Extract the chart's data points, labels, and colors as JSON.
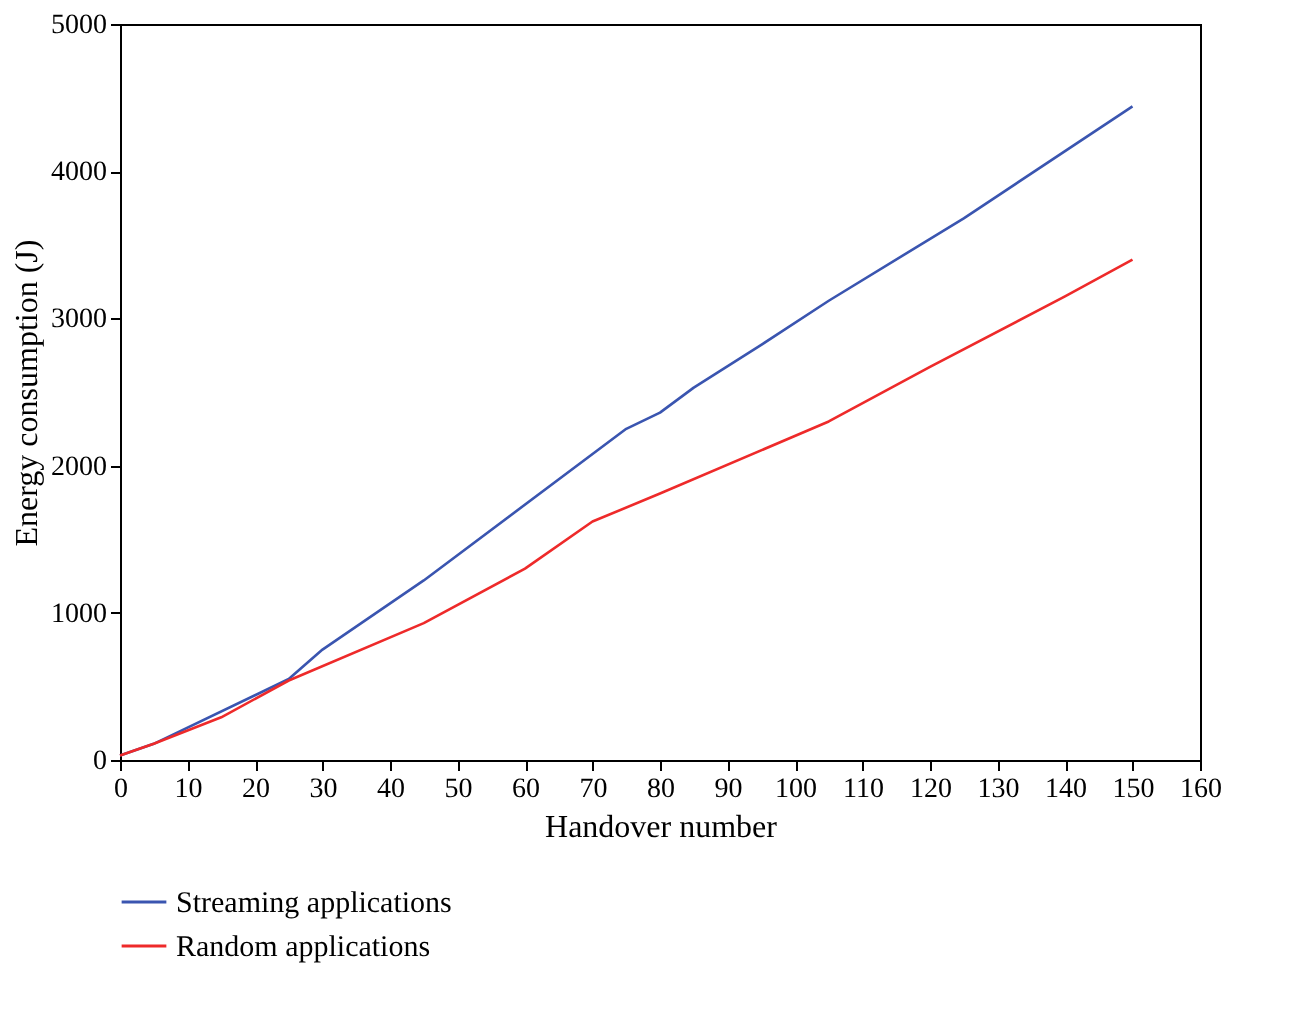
{
  "chart_data": {
    "type": "line",
    "xlabel": "Handover number",
    "ylabel": "Energy consumption (J)",
    "xlim": [
      0,
      160
    ],
    "xticks": [
      0,
      10,
      20,
      30,
      40,
      50,
      60,
      70,
      80,
      90,
      100,
      110,
      120,
      130,
      140,
      150,
      160
    ],
    "ylim": [
      0,
      5000
    ],
    "yticks": [
      0,
      1000,
      2000,
      3000,
      4000,
      5000
    ],
    "grid": false,
    "legend": "bottom",
    "marker": "none",
    "line_style": "solid",
    "series": [
      {
        "name": "Streaming applications",
        "color": "#3a55b0",
        "x": [
          0,
          5,
          25,
          30,
          45,
          75,
          80,
          85,
          95,
          105,
          125,
          150
        ],
        "values": [
          30,
          110,
          550,
          750,
          1220,
          2250,
          2360,
          2530,
          2820,
          3120,
          3680,
          4440
        ]
      },
      {
        "name": "Random applications",
        "color": "#ee2a2a",
        "x": [
          0,
          5,
          15,
          25,
          45,
          60,
          70,
          80,
          105,
          120,
          140,
          150
        ],
        "values": [
          30,
          110,
          290,
          540,
          930,
          1300,
          1620,
          1810,
          2300,
          2670,
          3150,
          3400
        ]
      }
    ]
  }
}
